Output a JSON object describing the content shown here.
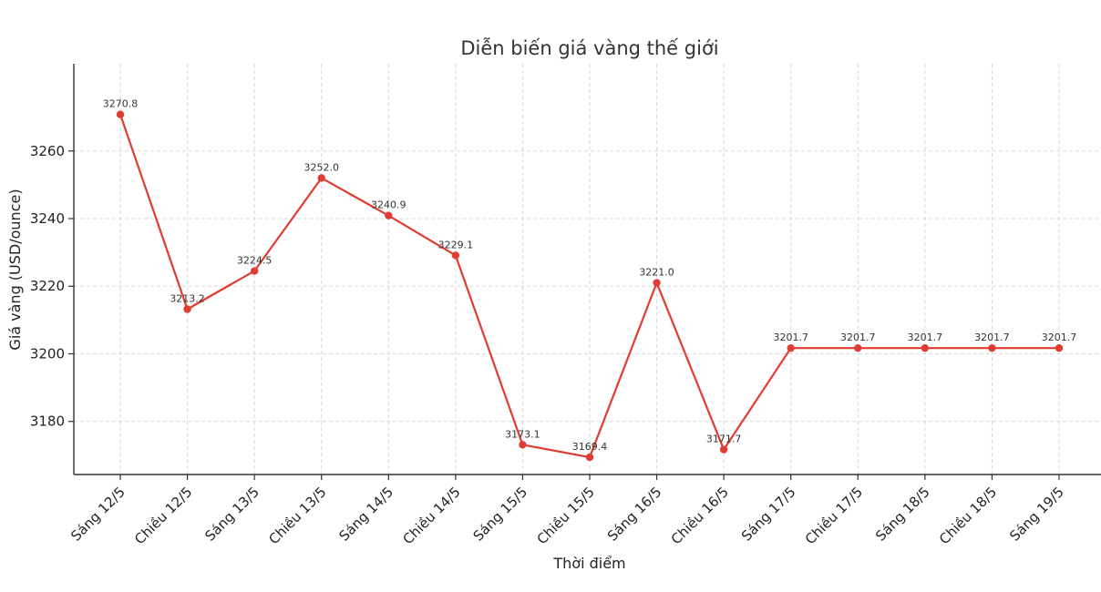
{
  "chart_data": {
    "type": "line",
    "title": "Diễn biến giá vàng thế giới",
    "xlabel": "Thời điểm",
    "ylabel": "Giá vàng (USD/ounce)",
    "categories": [
      "Sáng 12/5",
      "Chiều 12/5",
      "Sáng 13/5",
      "Chiều 13/5",
      "Sáng 14/5",
      "Chiều 14/5",
      "Sáng 15/5",
      "Chiều 15/5",
      "Sáng 16/5",
      "Chiều 16/5",
      "Sáng 17/5",
      "Chiều 17/5",
      "Sáng 18/5",
      "Chiều 18/5",
      "Sáng 19/5"
    ],
    "series": [
      {
        "values": [
          3270.8,
          3213.2,
          3224.5,
          3252.0,
          3240.9,
          3229.1,
          3173.1,
          3169.4,
          3221.0,
          3171.7,
          3201.7,
          3201.7,
          3201.7,
          3201.7,
          3201.7
        ]
      }
    ],
    "data_labels": [
      "3270.8",
      "3213.2",
      "3224.5",
      "3252.0",
      "3240.9",
      "3229.1",
      "3173.1",
      "3169.4",
      "3221.0",
      "3171.7",
      "3201.7",
      "3201.7",
      "3201.7",
      "3201.7",
      "3201.7"
    ],
    "yticks": [
      3180,
      3200,
      3220,
      3240,
      3260
    ],
    "ylim": [
      3164.3,
      3285.8
    ],
    "grid": true,
    "color": "#e03c31"
  }
}
